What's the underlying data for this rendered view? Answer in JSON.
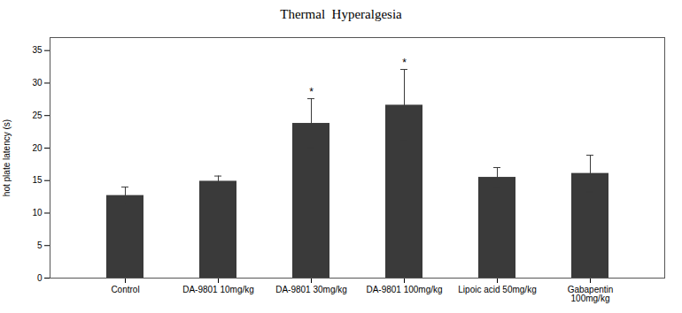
{
  "chart_data": {
    "type": "bar",
    "title": "Thermal  Hyperalgesia",
    "ylabel": "hot plate latency (s)",
    "categories": [
      "Control",
      "DA-9801 10mg/kg",
      "DA-9801 30mg/kg",
      "DA-9801 100mg/kg",
      "Lipoic acid 50mg/kg",
      "Gabapentin\n100mg/kg"
    ],
    "values": [
      12.7,
      14.9,
      23.8,
      26.6,
      15.5,
      16.1
    ],
    "errors": [
      1.3,
      0.8,
      3.8,
      5.5,
      1.5,
      2.8
    ],
    "significance": [
      false,
      false,
      true,
      true,
      false,
      false
    ],
    "sig_symbol": "*",
    "color": "#3a3a3a",
    "ylim": [
      0,
      37
    ],
    "yticks": [
      0,
      5,
      10,
      15,
      20,
      25,
      30,
      35
    ],
    "grid": false
  }
}
